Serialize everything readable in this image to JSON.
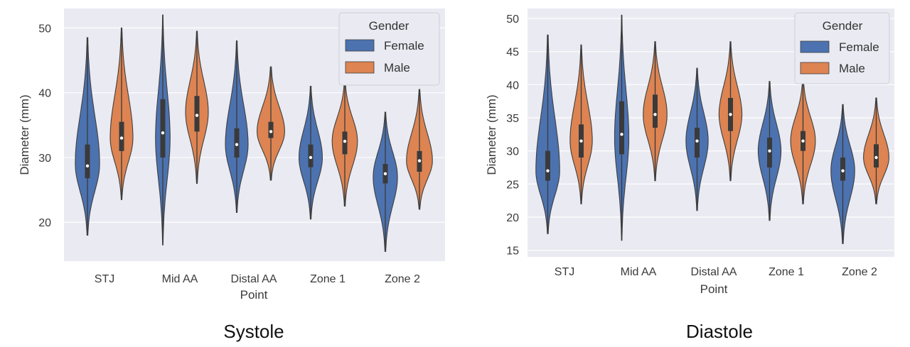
{
  "captions": [
    "Systole",
    "Diastole"
  ],
  "colors": {
    "female": "#4c72b0",
    "male": "#dd8452",
    "panel_bg": "#eaeaf2",
    "grid": "#ffffff",
    "edge": "#3f3f3f"
  },
  "chart_data": [
    {
      "type": "violin",
      "caption": "Systole",
      "xlabel": "Point",
      "ylabel": "Diameter (mm)",
      "categories": [
        "STJ",
        "Mid AA",
        "Distal AA",
        "Zone 1",
        "Zone 2"
      ],
      "ylim": [
        14,
        53
      ],
      "yticks": [
        20,
        30,
        40,
        50
      ],
      "grid": true,
      "legend": {
        "title": "Gender",
        "position": "top-right",
        "entries": [
          "Female",
          "Male"
        ]
      },
      "series": [
        {
          "name": "Female",
          "violins": [
            {
              "min": 18,
              "q1": 26.8,
              "median": 28.7,
              "q3": 32,
              "max": 48.5,
              "mode": 29,
              "width": 0.75
            },
            {
              "min": 16.5,
              "q1": 30,
              "median": 33.8,
              "q3": 39,
              "max": 52,
              "mode": 33,
              "width": 0.45
            },
            {
              "min": 21.5,
              "q1": 30,
              "median": 32,
              "q3": 34.5,
              "max": 48,
              "mode": 32,
              "width": 0.7
            },
            {
              "min": 20.5,
              "q1": 28.5,
              "median": 30,
              "q3": 32,
              "max": 41,
              "mode": 30,
              "width": 0.72
            },
            {
              "min": 15.5,
              "q1": 26,
              "median": 27.5,
              "q3": 29,
              "max": 37,
              "mode": 27,
              "width": 0.75
            }
          ]
        },
        {
          "name": "Male",
          "violins": [
            {
              "min": 23.5,
              "q1": 31,
              "median": 33,
              "q3": 35.5,
              "max": 50,
              "mode": 33,
              "width": 0.7
            },
            {
              "min": 26,
              "q1": 34,
              "median": 36.5,
              "q3": 39.5,
              "max": 49.5,
              "mode": 37,
              "width": 0.7
            },
            {
              "min": 26.5,
              "q1": 33,
              "median": 34,
              "q3": 35.5,
              "max": 44,
              "mode": 34,
              "width": 0.85
            },
            {
              "min": 22.5,
              "q1": 30.5,
              "median": 32.5,
              "q3": 34,
              "max": 42,
              "mode": 32.5,
              "width": 0.78
            },
            {
              "min": 22,
              "q1": 27.8,
              "median": 29.5,
              "q3": 31,
              "max": 40.5,
              "mode": 29.5,
              "width": 0.8
            }
          ]
        }
      ]
    },
    {
      "type": "violin",
      "caption": "Diastole",
      "xlabel": "Point",
      "ylabel": "Diameter (mm)",
      "categories": [
        "STJ",
        "Mid AA",
        "Distal AA",
        "Zone 1",
        "Zone 2"
      ],
      "ylim": [
        14,
        51.5
      ],
      "yticks": [
        15,
        20,
        25,
        30,
        35,
        40,
        45,
        50
      ],
      "grid": true,
      "legend": {
        "title": "Gender",
        "position": "top-right",
        "entries": [
          "Female",
          "Male"
        ]
      },
      "series": [
        {
          "name": "Female",
          "violins": [
            {
              "min": 17.5,
              "q1": 25.5,
              "median": 27,
              "q3": 30,
              "max": 47.5,
              "mode": 27,
              "width": 0.75
            },
            {
              "min": 16.5,
              "q1": 29.5,
              "median": 32.5,
              "q3": 37.5,
              "max": 50.5,
              "mode": 32,
              "width": 0.45
            },
            {
              "min": 21,
              "q1": 29,
              "median": 31.5,
              "q3": 33.5,
              "max": 42.5,
              "mode": 31.5,
              "width": 0.7
            },
            {
              "min": 19.5,
              "q1": 27.5,
              "median": 30,
              "q3": 32,
              "max": 40.5,
              "mode": 30,
              "width": 0.72
            },
            {
              "min": 16,
              "q1": 25.5,
              "median": 27,
              "q3": 29,
              "max": 37,
              "mode": 27,
              "width": 0.75
            }
          ]
        },
        {
          "name": "Male",
          "violins": [
            {
              "min": 22,
              "q1": 29,
              "median": 31.5,
              "q3": 34,
              "max": 46,
              "mode": 31.5,
              "width": 0.7
            },
            {
              "min": 25.5,
              "q1": 33.5,
              "median": 35.5,
              "q3": 38.5,
              "max": 46.5,
              "mode": 35.5,
              "width": 0.75
            },
            {
              "min": 25.5,
              "q1": 33,
              "median": 35.5,
              "q3": 38,
              "max": 46.5,
              "mode": 35.5,
              "width": 0.72
            },
            {
              "min": 22,
              "q1": 30,
              "median": 31.5,
              "q3": 33,
              "max": 41,
              "mode": 31.5,
              "width": 0.78
            },
            {
              "min": 22,
              "q1": 27.5,
              "median": 29,
              "q3": 31,
              "max": 38,
              "mode": 29,
              "width": 0.8
            }
          ]
        }
      ]
    }
  ]
}
